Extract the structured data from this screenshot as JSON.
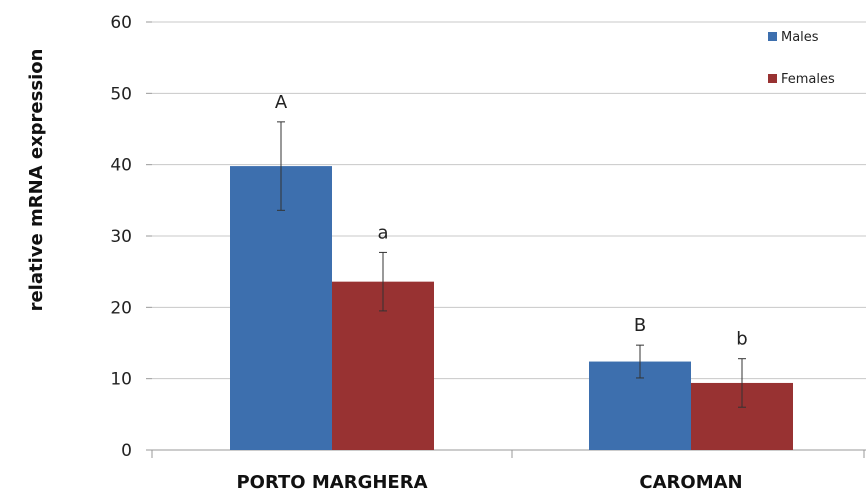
{
  "chart_data": {
    "type": "bar",
    "title": "",
    "xlabel": "",
    "ylabel": "relative mRNA expression",
    "ylim": [
      0,
      60
    ],
    "yticks": [
      "0",
      "10",
      "20",
      "30",
      "40",
      "50",
      "60"
    ],
    "categories": [
      "PORTO MARGHERA",
      "CAROMAN"
    ],
    "grid": true,
    "legend_position": "top-right",
    "series": [
      {
        "name": "Males",
        "color": "#3d6fae",
        "values": [
          39.8,
          12.4
        ],
        "errors": [
          6.2,
          2.3
        ],
        "labels": [
          "A",
          "B"
        ]
      },
      {
        "name": "Females",
        "color": "#983232",
        "values": [
          23.6,
          9.4
        ],
        "errors": [
          4.1,
          3.4
        ],
        "labels": [
          "a",
          "b"
        ]
      }
    ]
  }
}
